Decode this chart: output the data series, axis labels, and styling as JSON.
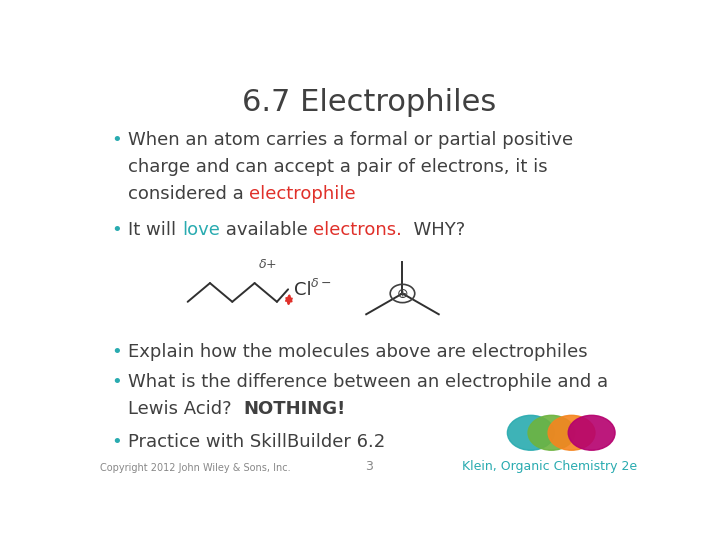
{
  "title": "6.7 Electrophiles",
  "title_color": "#404040",
  "title_fontsize": 22,
  "bg_color": "#ffffff",
  "bullet_color": "#29ABB0",
  "text_color": "#404040",
  "red_color": "#E0302A",
  "teal_color": "#29ABB0",
  "bullet1_line1": "When an atom carries a formal or partial positive",
  "bullet1_line2": "charge and can accept a pair of electrons, it is",
  "bullet1_line3_pre": "considered a ",
  "bullet1_line3_word": "electrophile",
  "bullet1_line3_color": "#E0302A",
  "bullet2_pre": "It will ",
  "bullet2_love": "love",
  "bullet2_love_color": "#29ABB0",
  "bullet2_mid": " available ",
  "bullet2_electrons": "electrons.",
  "bullet2_electrons_color": "#E0302A",
  "bullet2_post": "  WHY?",
  "bullet3": "Explain how the molecules above are electrophiles",
  "bullet4_line1": "What is the difference between an electrophile and a",
  "bullet4_line2_pre": "Lewis Acid?  ",
  "bullet4_line2_bold": "NOTHING!",
  "bullet5": "Practice with SkillBuilder 6.2",
  "footer_left": "Copyright 2012 John Wiley & Sons, Inc.",
  "footer_center": "3",
  "footer_right": "Klein, Organic Chemistry 2e",
  "footer_right_color": "#29ABB0",
  "circle_colors": [
    "#29ABB0",
    "#6DB33F",
    "#F5851F",
    "#B5006E"
  ],
  "footer_color": "#888888",
  "text_fontsize": 13,
  "lh": 0.065
}
